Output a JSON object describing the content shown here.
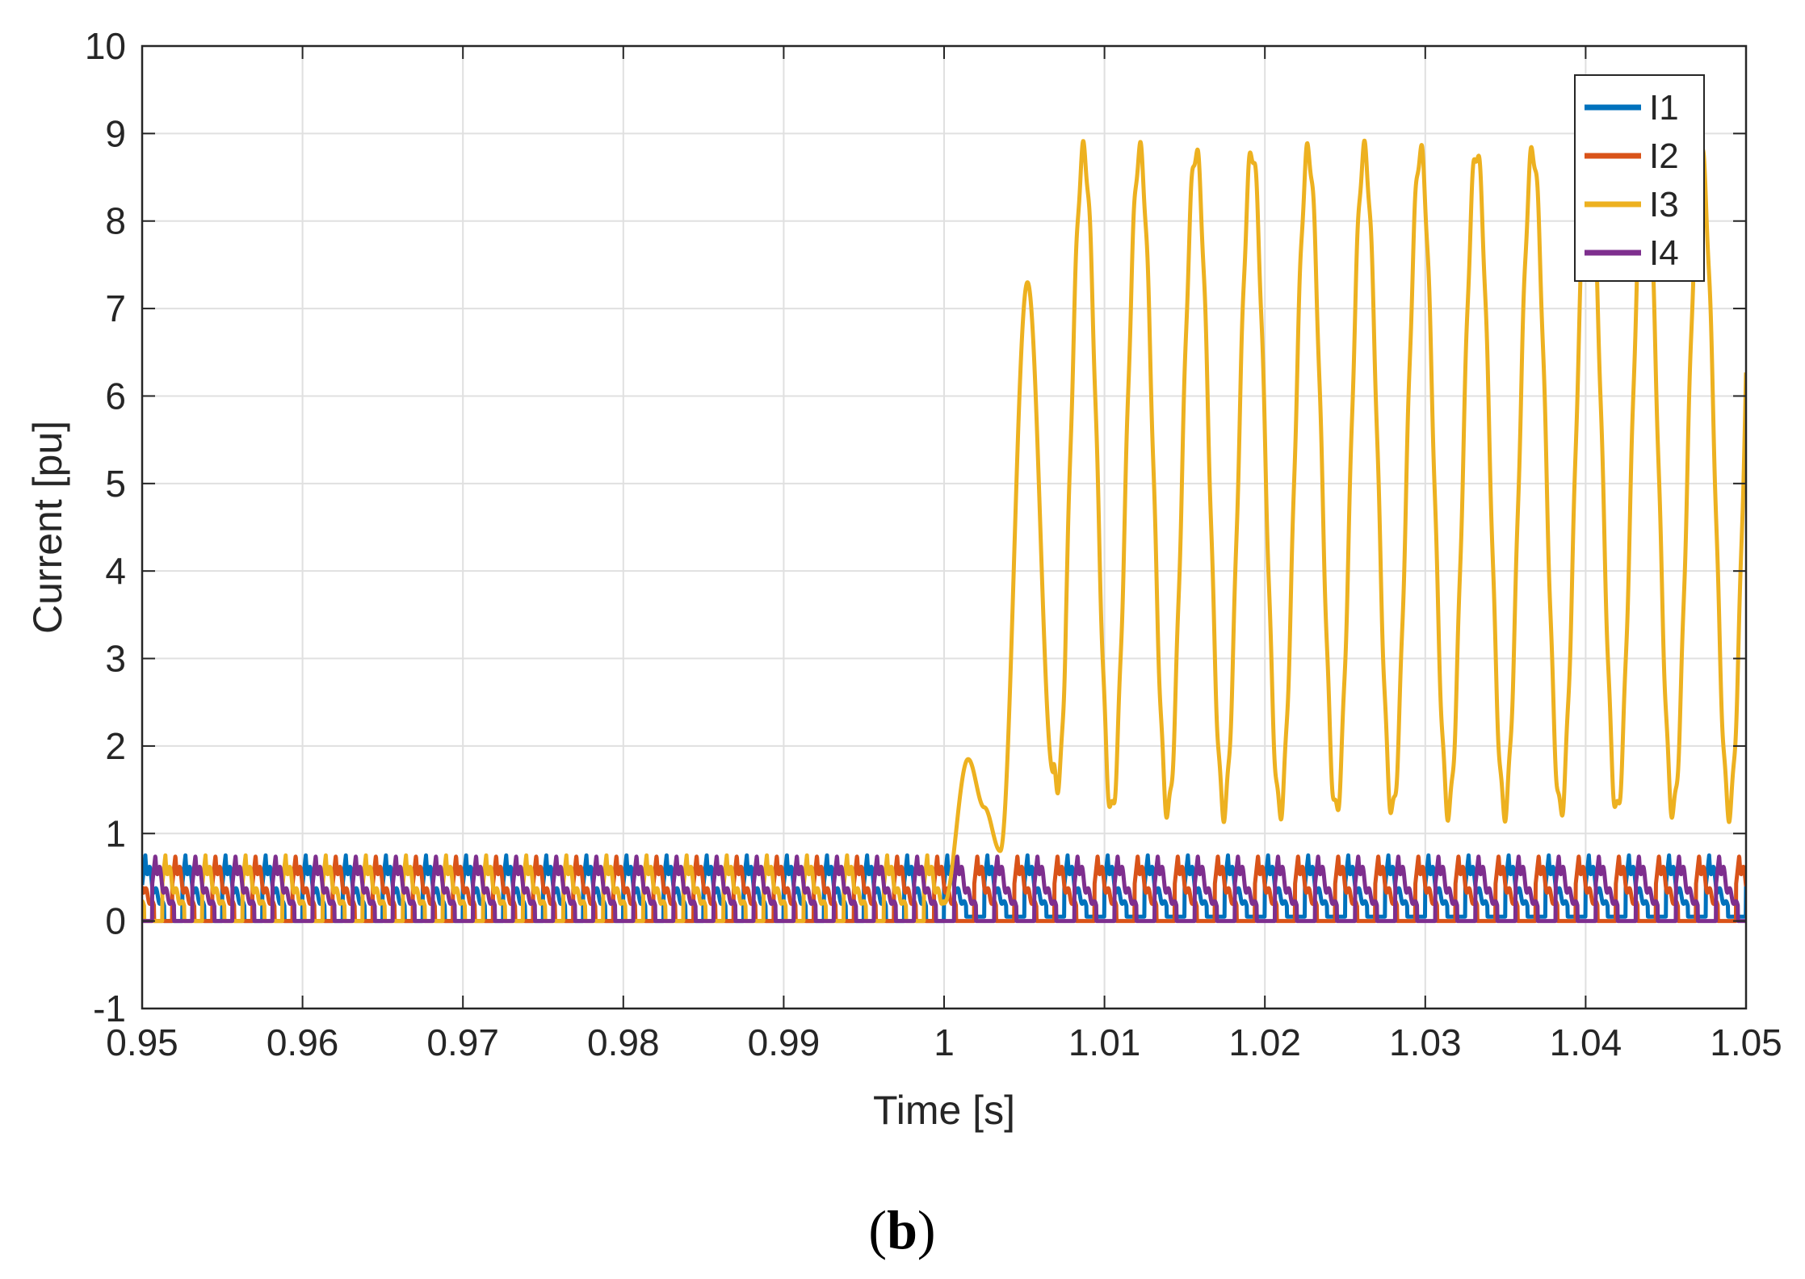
{
  "chart_data": {
    "type": "line",
    "title": "",
    "xlabel": "Time [s]",
    "ylabel": "Current [pu]",
    "xlim": [
      0.95,
      1.05
    ],
    "ylim": [
      -1,
      10
    ],
    "x_ticks": [
      0.95,
      0.96,
      0.97,
      0.98,
      0.99,
      1,
      1.01,
      1.02,
      1.03,
      1.04,
      1.05
    ],
    "x_tick_labels": [
      "0.95",
      "0.96",
      "0.97",
      "0.98",
      "0.99",
      "1",
      "1.01",
      "1.02",
      "1.03",
      "1.04",
      "1.05"
    ],
    "y_ticks": [
      -1,
      0,
      1,
      2,
      3,
      4,
      5,
      6,
      7,
      8,
      9,
      10
    ],
    "y_tick_labels": [
      "-1",
      "0",
      "1",
      "2",
      "3",
      "4",
      "5",
      "6",
      "7",
      "8",
      "9",
      "10"
    ],
    "grid": true,
    "legend_position": "top-right",
    "fault_time": 1.0,
    "pre_fault_pulse": {
      "period_s": 0.0025,
      "peak": 0.75,
      "base": 0.0
    },
    "series": [
      {
        "name": "I1",
        "color": "#0072BD",
        "phase_offset": 0.0,
        "post_fault_pulse": {
          "period_s": 0.0025,
          "peak": 0.75,
          "base": 0.05
        }
      },
      {
        "name": "I2",
        "color": "#D95319",
        "phase_offset": 0.25,
        "post_fault_pulse": {
          "period_s": 0.0025,
          "peak": 0.75,
          "base": 0.0
        }
      },
      {
        "name": "I3",
        "color": "#EDB120",
        "phase_offset": 0.5,
        "post_fault": {
          "description_points": [
            {
              "x": 1.0,
              "y": 0.2
            },
            {
              "x": 1.0015,
              "y": 1.85
            },
            {
              "x": 1.0025,
              "y": 1.3
            },
            {
              "x": 1.0035,
              "y": 0.8
            },
            {
              "x": 1.0052,
              "y": 7.3
            },
            {
              "x": 1.0068,
              "y": 1.7
            }
          ],
          "period_s": 0.0035,
          "peak": 8.8,
          "trough": 1.25,
          "first_peak_x": 1.0087,
          "end_value": 2.75
        }
      },
      {
        "name": "I4",
        "color": "#7E2F8E",
        "phase_offset": 0.75,
        "post_fault_pulse": {
          "period_s": 0.0025,
          "peak": 0.75,
          "base": 0.0
        }
      }
    ]
  },
  "figure": {
    "caption_open": "(",
    "caption_letter": "b",
    "caption_close": ")"
  },
  "colors": {
    "axis": "#262626",
    "grid": "#e0e0e0",
    "background": "#ffffff"
  }
}
